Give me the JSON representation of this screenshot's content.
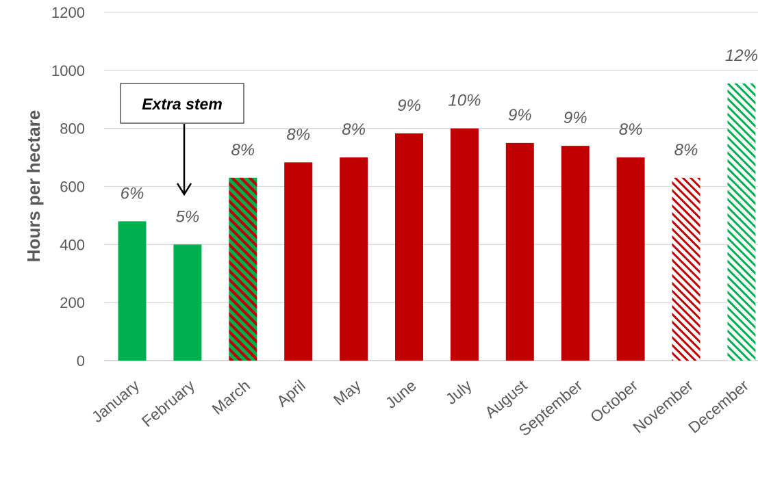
{
  "chart_data": {
    "type": "bar",
    "title": "",
    "xlabel": "",
    "ylabel": "Hours per hectare",
    "ylim": [
      0,
      1200
    ],
    "yticks": [
      0,
      200,
      400,
      600,
      800,
      1000,
      1200
    ],
    "grid": true,
    "categories": [
      "January",
      "February",
      "March",
      "April",
      "May",
      "June",
      "July",
      "August",
      "September",
      "October",
      "November",
      "December"
    ],
    "values": [
      480,
      400,
      630,
      683,
      700,
      783,
      800,
      750,
      740,
      700,
      630,
      955
    ],
    "percent_labels": [
      "6%",
      "5%",
      "8%",
      "8%",
      "8%",
      "9%",
      "10%",
      "9%",
      "9%",
      "8%",
      "8%",
      "12%"
    ],
    "bar_fills": [
      "green",
      "green",
      "green-red-hatch",
      "red",
      "red",
      "red",
      "red",
      "red",
      "red",
      "red",
      "red-hatch",
      "green-hatch"
    ],
    "colors": {
      "green": "#00b050",
      "red": "#c00000",
      "grid": "#d9d9d9",
      "text": "#595959"
    },
    "annotation": {
      "text": "Extra stem",
      "target": "February"
    }
  }
}
